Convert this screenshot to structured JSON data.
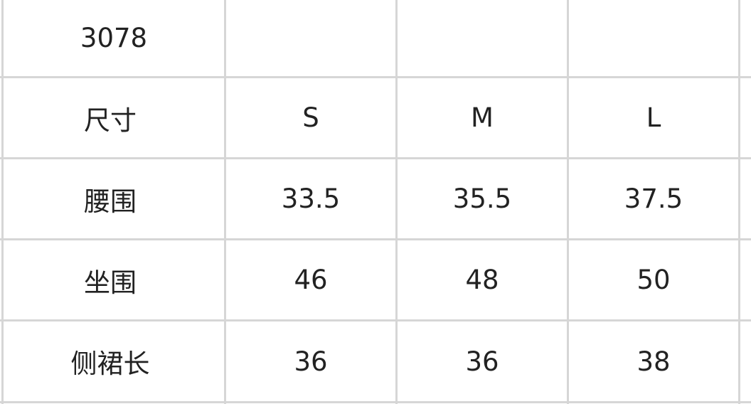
{
  "title": "3078",
  "header": {
    "label": "尺寸",
    "sizes": [
      "S",
      "M",
      "L"
    ]
  },
  "rows": [
    {
      "label": "腰围",
      "values": [
        "33.5",
        "35.5",
        "37.5"
      ]
    },
    {
      "label": "坐围",
      "values": [
        "46",
        "48",
        "50"
      ]
    },
    {
      "label": "侧裙长",
      "values": [
        "36",
        "36",
        "38"
      ]
    }
  ],
  "colors": {
    "grid": "#d6d6d6",
    "text": "#222222"
  }
}
